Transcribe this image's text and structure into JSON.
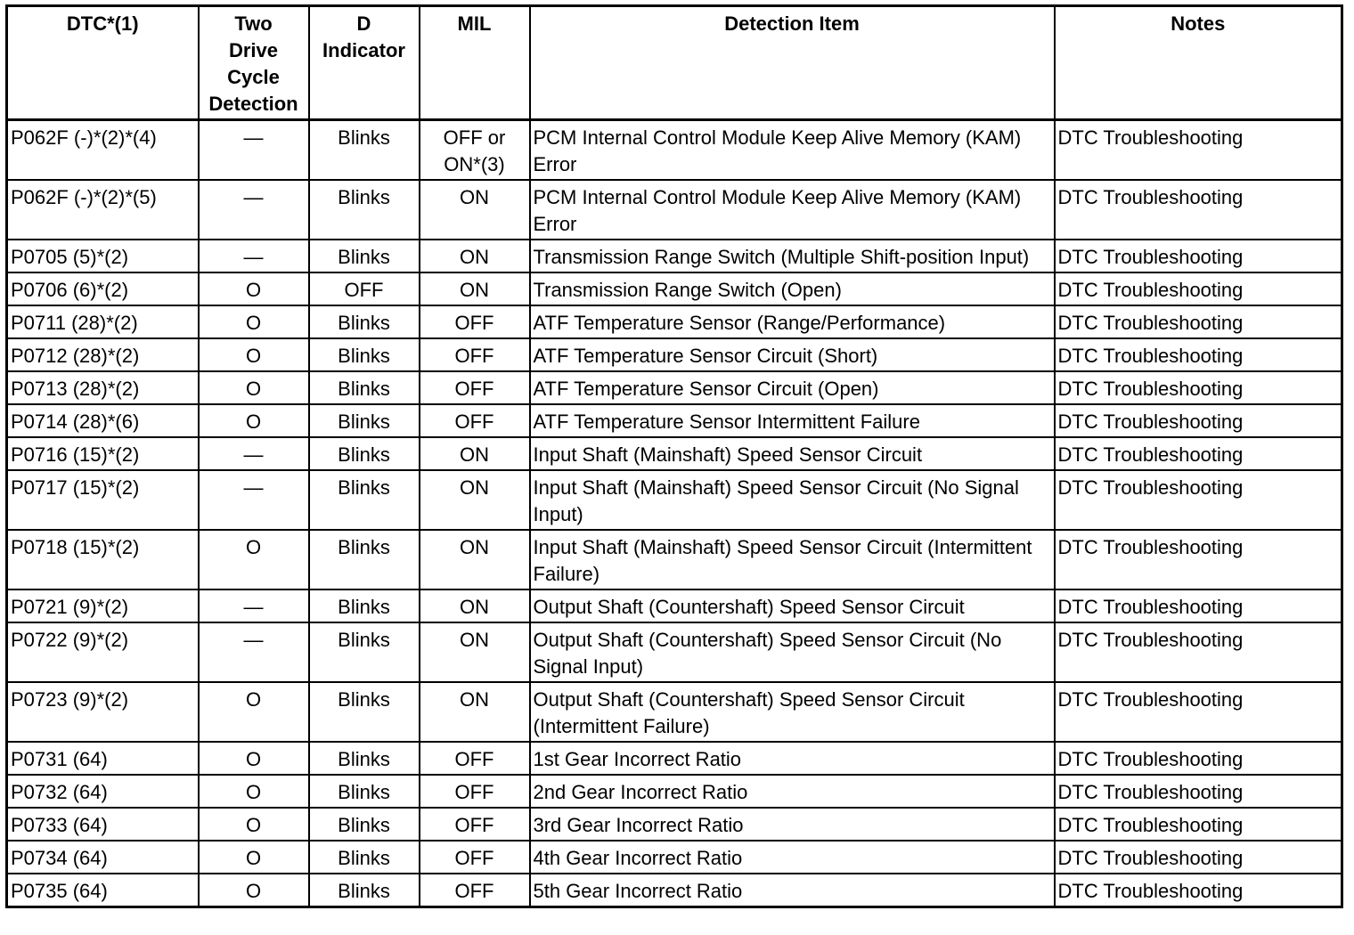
{
  "table": {
    "header": [
      "DTC*(1)",
      "Two\nDrive\nCycle\nDetection",
      "D\nIndicator",
      "MIL",
      "Detection Item",
      "Notes"
    ],
    "rows": [
      [
        "P062F (-)*(2)*(4)",
        "—",
        "Blinks",
        "OFF or ON*(3)",
        "PCM Internal Control Module Keep Alive Memory (KAM) Error",
        "DTC Troubleshooting"
      ],
      [
        "P062F (-)*(2)*(5)",
        "—",
        "Blinks",
        "ON",
        "PCM Internal Control Module Keep Alive Memory (KAM) Error",
        "DTC Troubleshooting"
      ],
      [
        "P0705 (5)*(2)",
        "—",
        "Blinks",
        "ON",
        "Transmission Range Switch (Multiple Shift-position Input)",
        "DTC Troubleshooting"
      ],
      [
        "P0706 (6)*(2)",
        "O",
        "OFF",
        "ON",
        "Transmission Range Switch (Open)",
        "DTC Troubleshooting"
      ],
      [
        "P0711 (28)*(2)",
        "O",
        "Blinks",
        "OFF",
        "ATF Temperature Sensor (Range/Performance)",
        "DTC Troubleshooting"
      ],
      [
        "P0712 (28)*(2)",
        "O",
        "Blinks",
        "OFF",
        "ATF Temperature Sensor Circuit (Short)",
        "DTC Troubleshooting"
      ],
      [
        "P0713 (28)*(2)",
        "O",
        "Blinks",
        "OFF",
        "ATF Temperature Sensor Circuit (Open)",
        "DTC Troubleshooting"
      ],
      [
        "P0714 (28)*(6)",
        "O",
        "Blinks",
        "OFF",
        "ATF Temperature Sensor Intermittent Failure",
        "DTC Troubleshooting"
      ],
      [
        "P0716 (15)*(2)",
        "—",
        "Blinks",
        "ON",
        "Input Shaft (Mainshaft) Speed Sensor Circuit",
        "DTC Troubleshooting"
      ],
      [
        "P0717 (15)*(2)",
        "—",
        "Blinks",
        "ON",
        "Input Shaft (Mainshaft) Speed Sensor Circuit (No Signal Input)",
        "DTC Troubleshooting"
      ],
      [
        "P0718 (15)*(2)",
        "O",
        "Blinks",
        "ON",
        "Input Shaft (Mainshaft) Speed Sensor Circuit (Intermittent Failure)",
        "DTC Troubleshooting"
      ],
      [
        "P0721 (9)*(2)",
        "—",
        "Blinks",
        "ON",
        "Output Shaft (Countershaft) Speed Sensor Circuit",
        "DTC Troubleshooting"
      ],
      [
        "P0722 (9)*(2)",
        "—",
        "Blinks",
        "ON",
        "Output Shaft (Countershaft) Speed Sensor Circuit (No Signal Input)",
        "DTC Troubleshooting"
      ],
      [
        "P0723 (9)*(2)",
        "O",
        "Blinks",
        "ON",
        "Output Shaft (Countershaft) Speed Sensor Circuit (Intermittent Failure)",
        "DTC Troubleshooting"
      ],
      [
        "P0731 (64)",
        "O",
        "Blinks",
        "OFF",
        "1st Gear Incorrect Ratio",
        "DTC Troubleshooting"
      ],
      [
        "P0732 (64)",
        "O",
        "Blinks",
        "OFF",
        "2nd Gear Incorrect Ratio",
        "DTC Troubleshooting"
      ],
      [
        "P0733 (64)",
        "O",
        "Blinks",
        "OFF",
        "3rd Gear Incorrect Ratio",
        "DTC Troubleshooting"
      ],
      [
        "P0734 (64)",
        "O",
        "Blinks",
        "OFF",
        "4th Gear Incorrect Ratio",
        "DTC Troubleshooting"
      ],
      [
        "P0735 (64)",
        "O",
        "Blinks",
        "OFF",
        "5th Gear Incorrect Ratio",
        "DTC Troubleshooting"
      ]
    ]
  }
}
